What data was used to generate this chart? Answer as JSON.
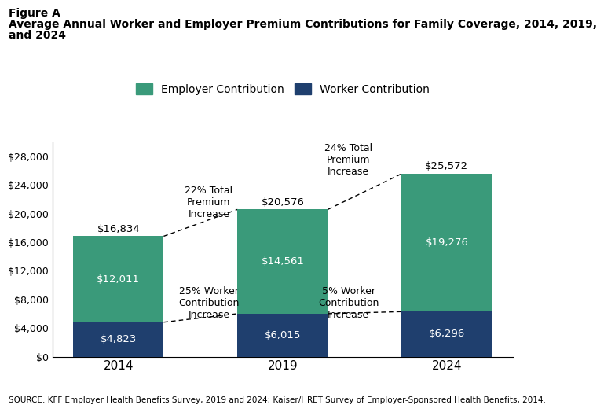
{
  "years": [
    "2014",
    "2019",
    "2024"
  ],
  "worker_contributions": [
    4823,
    6015,
    6296
  ],
  "employer_contributions": [
    12011,
    14561,
    19276
  ],
  "totals": [
    16834,
    20576,
    25572
  ],
  "worker_color": "#1f3f6e",
  "employer_color": "#3a9a7a",
  "bar_width": 0.55,
  "ylim": [
    0,
    30000
  ],
  "yticks": [
    0,
    4000,
    8000,
    12000,
    16000,
    20000,
    24000,
    28000
  ],
  "title_line1": "Figure A",
  "title_line2": "Average Annual Worker and Employer Premium Contributions for Family Coverage, 2014, 2019,",
  "title_line3": "and 2024",
  "source_text": "SOURCE: KFF Employer Health Benefits Survey, 2019 and 2024; Kaiser/HRET Survey of Employer-Sponsored Health Benefits, 2014.",
  "annotation_total_2014_2019": "22% Total\nPremium\nIncrease",
  "annotation_total_2019_2024": "24% Total\nPremium\nIncrease",
  "annotation_worker_2014_2019": "25% Worker\nContribution\nIncrease",
  "annotation_worker_2019_2024": "5% Worker\nContribution\nIncrease",
  "legend_employer": "Employer Contribution",
  "legend_worker": "Worker Contribution"
}
